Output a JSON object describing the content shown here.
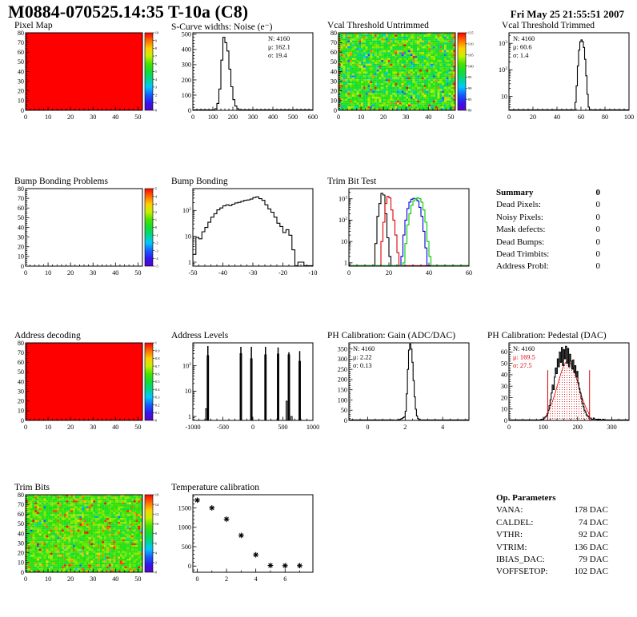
{
  "header": {
    "title": "M0884-070525.14:35 T-10a (C8)",
    "date": "Fri May 25 21:55:51 2007"
  },
  "summary": {
    "title": "Summary",
    "total": "0",
    "rows": [
      [
        "Dead Pixels:",
        "0"
      ],
      [
        "Noisy Pixels:",
        "0"
      ],
      [
        "Mask defects:",
        "0"
      ],
      [
        "Dead Bumps:",
        "0"
      ],
      [
        "Dead Trimbits:",
        "0"
      ],
      [
        "Address Probl:",
        "0"
      ]
    ]
  },
  "op_parameters": {
    "title": "Op. Parameters",
    "rows": [
      [
        "VANA:",
        "178 DAC"
      ],
      [
        "CALDEL:",
        "74 DAC"
      ],
      [
        "VTHR:",
        "92 DAC"
      ],
      [
        "VTRIM:",
        "136 DAC"
      ],
      [
        "IBIAS_DAC:",
        "79 DAC"
      ],
      [
        "VOFFSETOP:",
        "102 DAC"
      ]
    ]
  },
  "chart_data": [
    {
      "id": "pixel-map",
      "type": "heatmap",
      "title": "Pixel Map",
      "xlim": [
        0,
        52
      ],
      "xticks": [
        0,
        10,
        20,
        30,
        40,
        50
      ],
      "ylim": [
        0,
        80
      ],
      "yticks": [
        0,
        10,
        20,
        30,
        40,
        50,
        60,
        70,
        80
      ],
      "heat": {
        "mode": "uniform",
        "value": 1.0
      },
      "colorbar": {
        "min": 0,
        "max": 10,
        "ticks": [
          0,
          1,
          2,
          3,
          4,
          5,
          6,
          7,
          8,
          9,
          10
        ]
      }
    },
    {
      "id": "scurve-noise",
      "type": "hist",
      "title": "S-Curve widths: Noise (e⁻)",
      "xlim": [
        0,
        600
      ],
      "xticks": [
        0,
        100,
        200,
        300,
        400,
        500,
        600
      ],
      "ylim": [
        0,
        510
      ],
      "yticks": [
        0,
        100,
        200,
        300,
        400,
        500
      ],
      "stats": {
        "pos": "right",
        "lines": [
          {
            "text": "N: 4160",
            "color": "#000000"
          },
          {
            "text": "μ: 162.1",
            "color": "#000000"
          },
          {
            "text": "σ: 19.4",
            "color": "#000000"
          }
        ]
      },
      "series": [
        {
          "color": "#000000",
          "bin_start": 100,
          "bin_width": 10,
          "counts": [
            2,
            10,
            45,
            140,
            330,
            480,
            445,
            390,
            270,
            155,
            70,
            28,
            10,
            3
          ]
        }
      ]
    },
    {
      "id": "vcal-untrimmed",
      "type": "heatmap",
      "title": "Vcal Threshold Untrimmed",
      "xlim": [
        0,
        52
      ],
      "xticks": [
        0,
        10,
        20,
        30,
        40,
        50
      ],
      "ylim": [
        0,
        80
      ],
      "yticks": [
        0,
        10,
        20,
        30,
        40,
        50,
        60,
        70,
        80
      ],
      "heat": {
        "mode": "noise",
        "seed": 20070525,
        "base": 0.56,
        "spread": 0.13,
        "hot": 0.05,
        "cold": 0.06,
        "edges": true
      },
      "colorbar": {
        "min": 80,
        "max": 115,
        "ticks": [
          80,
          85,
          90,
          95,
          100,
          105,
          110,
          115
        ]
      }
    },
    {
      "id": "vcal-trimmed",
      "type": "hist",
      "title": "Vcal Threshold Trimmed",
      "xlim": [
        0,
        100
      ],
      "xticks": [
        0,
        20,
        40,
        60,
        80,
        100
      ],
      "ylog": true,
      "ylim": [
        3,
        2500
      ],
      "stats": {
        "pos": "left",
        "lines": [
          {
            "text": "N: 4160",
            "color": "#000000"
          },
          {
            "text": "μ: 60.6",
            "color": "#000000"
          },
          {
            "text": "σ: 1.4",
            "color": "#000000"
          }
        ]
      },
      "series": [
        {
          "color": "#000000",
          "bin_start": 54,
          "bin_width": 1,
          "counts": [
            2,
            6,
            25,
            140,
            550,
            1150,
            1350,
            1150,
            700,
            250,
            60,
            12,
            4,
            2
          ]
        }
      ]
    },
    {
      "id": "bump-problems",
      "type": "heatmap",
      "title": "Bump Bonding Problems",
      "xlim": [
        0,
        52
      ],
      "xticks": [
        0,
        10,
        20,
        30,
        40,
        50
      ],
      "ylim": [
        0,
        80
      ],
      "yticks": [
        0,
        10,
        20,
        30,
        40,
        50,
        60,
        70,
        80
      ],
      "heat": {
        "mode": "blank"
      },
      "colorbar": {
        "min": -5,
        "max": 5,
        "ticks": [
          -5,
          -4,
          -3,
          -2,
          -1,
          0,
          1,
          2,
          3,
          4,
          5
        ]
      }
    },
    {
      "id": "bump-bonding",
      "type": "hist",
      "title": "Bump Bonding",
      "xlim": [
        -50,
        -10
      ],
      "xticks": [
        -50,
        -40,
        -30,
        -20,
        -10
      ],
      "ylog": true,
      "ylim": [
        0.7,
        700
      ],
      "series": [
        {
          "color": "#000000",
          "bin_start": -50,
          "bin_width": 1,
          "counts": [
            2,
            9,
            8,
            15,
            22,
            35,
            55,
            75,
            105,
            125,
            150,
            165,
            155,
            175,
            195,
            205,
            225,
            245,
            255,
            275,
            315,
            335,
            285,
            245,
            165,
            115,
            85,
            55,
            32,
            24,
            14,
            18,
            11,
            3,
            0,
            1,
            1,
            0,
            0,
            0
          ]
        }
      ]
    },
    {
      "id": "trim-bit-test",
      "type": "hist",
      "title": "Trim Bit Test",
      "xlim": [
        0,
        60
      ],
      "xticks": [
        0,
        20,
        40,
        60
      ],
      "ylog": true,
      "ylim": [
        0.7,
        3000
      ],
      "series": [
        {
          "color": "#000000",
          "bin_start": 13,
          "bin_width": 1,
          "counts": [
            8,
            150,
            600,
            1800,
            1500,
            200,
            15,
            2
          ]
        },
        {
          "color": "#dd0000",
          "bin_start": 16,
          "bin_width": 1,
          "counts": [
            10,
            80,
            600,
            1300,
            1100,
            300,
            100,
            20,
            3
          ]
        },
        {
          "color": "#0000dd",
          "bin_start": 26,
          "bin_width": 1,
          "counts": [
            2,
            20,
            100,
            350,
            700,
            950,
            1050,
            1000,
            800,
            400,
            150,
            30,
            5
          ]
        },
        {
          "color": "#00cc00",
          "bin_start": 27,
          "bin_width": 1,
          "counts": [
            1,
            8,
            60,
            200,
            500,
            800,
            1000,
            1100,
            1000,
            700,
            300,
            80,
            10,
            2
          ]
        }
      ]
    },
    {
      "id": "address-decoding",
      "type": "heatmap",
      "title": "Address decoding",
      "xlim": [
        0,
        52
      ],
      "xticks": [
        0,
        10,
        20,
        30,
        40,
        50
      ],
      "ylim": [
        0,
        80
      ],
      "yticks": [
        0,
        10,
        20,
        30,
        40,
        50,
        60,
        70,
        80
      ],
      "heat": {
        "mode": "uniform",
        "value": 1.0
      },
      "colorbar": {
        "min": 0,
        "max": 1,
        "ticks": [
          0,
          0.1,
          0.2,
          0.3,
          0.4,
          0.5,
          0.6,
          0.7,
          0.8,
          0.9,
          1
        ]
      }
    },
    {
      "id": "address-levels",
      "type": "spikes",
      "title": "Address Levels",
      "xlim": [
        -1000,
        1000
      ],
      "xticks": [
        -1000,
        -500,
        0,
        500,
        1000
      ],
      "ylog": true,
      "ylim": [
        0.7,
        800
      ],
      "spikes": [
        {
          "x": -750,
          "bar": 250,
          "peak": 600
        },
        {
          "x": -200,
          "bar": 300,
          "peak": 560
        },
        {
          "x": -25,
          "bar": 190,
          "peak": 560
        },
        {
          "x": 210,
          "bar": 270,
          "peak": 560
        },
        {
          "x": 420,
          "bar": 290,
          "peak": 530
        },
        {
          "x": 600,
          "bar": 270,
          "peak": 340
        },
        {
          "x": 780,
          "bar": 150,
          "peak": 380
        }
      ],
      "smalls": [
        {
          "x": -778,
          "h": 2
        },
        {
          "x": 562,
          "h": 4
        },
        {
          "x": 645,
          "h": 1
        }
      ]
    },
    {
      "id": "ph-gain",
      "type": "hist",
      "title": "PH Calibration: Gain (ADC/DAC)",
      "xlim": [
        -1,
        5.4
      ],
      "xticks": [
        0,
        2,
        4
      ],
      "ylim": [
        0,
        380
      ],
      "yticks": [
        0,
        50,
        100,
        150,
        200,
        250,
        300,
        350
      ],
      "stats": {
        "pos": "left",
        "lines": [
          {
            "text": "N: 4160",
            "color": "#000000"
          },
          {
            "text": "μ: 2.22",
            "color": "#000000"
          },
          {
            "text": "σ: 0.13",
            "color": "#000000"
          }
        ]
      },
      "series": [
        {
          "color": "#000000",
          "bin_start": 1.4,
          "bin_width": 0.06,
          "counts": [
            1,
            1,
            2,
            2,
            3,
            5,
            7,
            10,
            14,
            17,
            45,
            130,
            250,
            345,
            375,
            350,
            285,
            195,
            115,
            55,
            22,
            9,
            4,
            2
          ]
        }
      ]
    },
    {
      "id": "ph-pedestal",
      "type": "hist",
      "title": "PH Calibration: Pedestal (DAC)",
      "xlim": [
        0,
        350
      ],
      "xticks": [
        0,
        100,
        200,
        300
      ],
      "ylim": [
        0,
        68
      ],
      "yticks": [
        0,
        10,
        20,
        30,
        40,
        50,
        60
      ],
      "stats": {
        "pos": "left",
        "lines": [
          {
            "text": "N: 4160",
            "color": "#000000"
          },
          {
            "text": "μ: 169.5",
            "color": "#dd0000"
          },
          {
            "text": "σ: 27.5",
            "color": "#dd0000"
          }
        ]
      },
      "fit": {
        "mu": 172,
        "sigma": 30,
        "amp": 52,
        "range": [
          113,
          235
        ],
        "color": "#dd0000"
      },
      "vlines": [
        {
          "x": 113,
          "h": 44,
          "color": "#dd0000"
        },
        {
          "x": 235,
          "h": 44,
          "color": "#dd0000"
        }
      ],
      "series": [
        {
          "color": "#000000",
          "bin_start": 93,
          "bin_width": 3,
          "counts": [
            1,
            1,
            1,
            2,
            3,
            4,
            6,
            9,
            13,
            18,
            24,
            31,
            27,
            38,
            46,
            41,
            54,
            47,
            60,
            51,
            64,
            48,
            62,
            54,
            65,
            50,
            63,
            47,
            58,
            52,
            45,
            53,
            42,
            48,
            38,
            43,
            33,
            28,
            24,
            19,
            15,
            12,
            9,
            7,
            5,
            4,
            3,
            2,
            2,
            1,
            1,
            2,
            1,
            1,
            0,
            1,
            0,
            1,
            0,
            0,
            1,
            0,
            0,
            0
          ]
        }
      ]
    },
    {
      "id": "trim-bits",
      "type": "heatmap",
      "title": "Trim Bits",
      "xlim": [
        0,
        52
      ],
      "xticks": [
        0,
        10,
        20,
        30,
        40,
        50
      ],
      "ylim": [
        0,
        80
      ],
      "yticks": [
        0,
        10,
        20,
        30,
        40,
        50,
        60,
        70,
        80
      ],
      "heat": {
        "mode": "noise",
        "seed": 424242,
        "base": 0.58,
        "spread": 0.09,
        "hot": 0.09,
        "cold": 0.012,
        "edges": false
      },
      "colorbar": {
        "min": 0,
        "max": 16,
        "ticks": [
          0,
          2,
          4,
          6,
          8,
          10,
          12,
          14,
          16
        ]
      }
    },
    {
      "id": "temperature-calibration",
      "type": "scatter",
      "title": "Temperature calibration",
      "xlim": [
        -0.3,
        7.9
      ],
      "xticks": [
        0,
        2,
        4,
        6
      ],
      "xminor": 1,
      "ylim": [
        -160,
        1840
      ],
      "yticks": [
        0,
        500,
        1000,
        1500
      ],
      "points": [
        [
          0,
          1700
        ],
        [
          1,
          1500
        ],
        [
          2,
          1210
        ],
        [
          3,
          790
        ],
        [
          4,
          290
        ],
        [
          5,
          15
        ],
        [
          6,
          10
        ],
        [
          7,
          10
        ]
      ]
    }
  ]
}
